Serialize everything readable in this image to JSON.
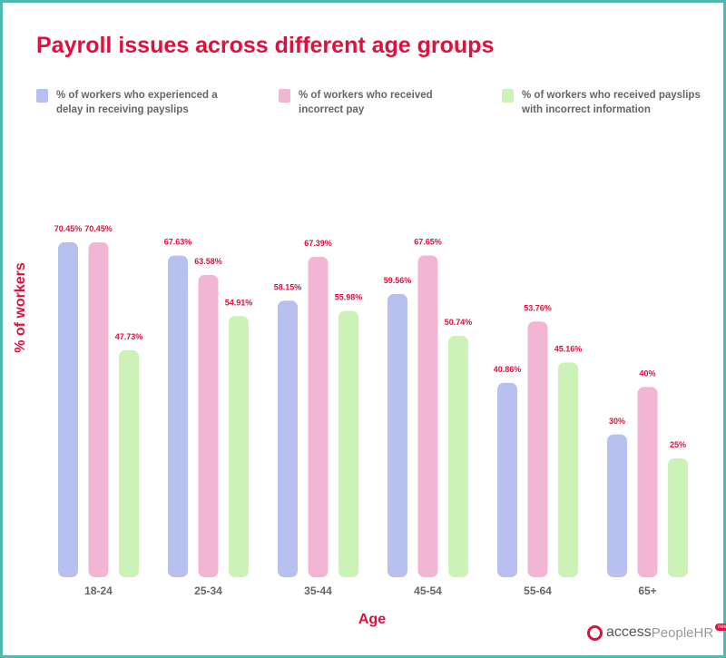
{
  "chart_data": {
    "type": "bar",
    "title": "Payroll issues across different age groups",
    "xlabel": "Age",
    "ylabel": "% of workers",
    "categories": [
      "18-24",
      "25-34",
      "35-44",
      "45-54",
      "55-64",
      "65+"
    ],
    "series": [
      {
        "name": "% of workers who experienced a delay in receiving payslips",
        "color": "#b8c0f0",
        "values": [
          70.45,
          67.63,
          58.15,
          59.56,
          40.86,
          30
        ],
        "labels": [
          "70.45%",
          "67.63%",
          "58.15%",
          "59.56%",
          "40.86%",
          "30%"
        ]
      },
      {
        "name": "% of workers who received incorrect pay",
        "color": "#f2b6d4",
        "values": [
          70.45,
          63.58,
          67.39,
          67.65,
          53.76,
          40
        ],
        "labels": [
          "70.45%",
          "63.58%",
          "67.39%",
          "67.65%",
          "53.76%",
          "40%"
        ]
      },
      {
        "name": "% of workers who received payslips with incorrect information",
        "color": "#cdf2b8",
        "values": [
          47.73,
          54.91,
          55.98,
          50.74,
          45.16,
          25
        ],
        "labels": [
          "47.73%",
          "54.91%",
          "55.98%",
          "50.74%",
          "45.16%",
          "25%"
        ]
      }
    ],
    "legend_lines": [
      [
        "% of workers who experienced a",
        "delay in receiving payslips"
      ],
      [
        "% of workers who received",
        "incorrect pay"
      ],
      [
        "% of workers who received payslips",
        "with incorrect information"
      ]
    ],
    "ylim": [
      0,
      100
    ],
    "grid": false,
    "legend_position": "top",
    "accent_color": "#e0103c"
  },
  "logo": {
    "part1": "access",
    "part2": "PeopleHR",
    "badge": "new"
  }
}
